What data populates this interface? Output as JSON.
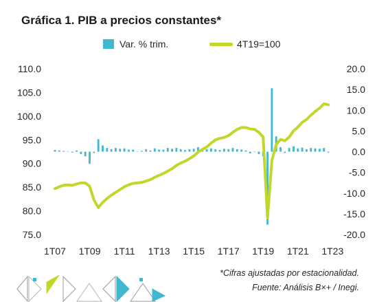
{
  "chart_data": {
    "type": "bar+line",
    "title": "Gráfica 1. PIB a precios constantes*",
    "legend": {
      "placement": "top-center",
      "items": [
        "Var. % trim.",
        "4T19=100"
      ]
    },
    "colors": {
      "bars": "#3fb8d0",
      "line": "#c3d62a"
    },
    "x_tick_labels": [
      "1T07",
      "1T09",
      "1T11",
      "1T13",
      "1T15",
      "1T17",
      "1T19",
      "1T21",
      "1T23"
    ],
    "left_axis": {
      "ylim": [
        75,
        110
      ],
      "ticks": [
        "110.0",
        "105.0",
        "100.0",
        "95.0",
        "90.0",
        "85.0",
        "80.0",
        "75.0"
      ]
    },
    "right_axis": {
      "ylim": [
        -20,
        20
      ],
      "ticks": [
        "20.0",
        "15.0",
        "10.0",
        "5.0",
        "0.0",
        "-5.0",
        "-10.0",
        "-15.0",
        "-20.0"
      ]
    },
    "grid": false,
    "series": [
      {
        "name": "Var. % trim.",
        "type": "bar",
        "axis": "right",
        "values": [
          0.4,
          0.3,
          0.2,
          0.1,
          -0.2,
          0.3,
          -0.6,
          -1.1,
          -2.9,
          -0.3,
          3.0,
          1.5,
          0.9,
          0.6,
          0.9,
          0.7,
          0.8,
          0.5,
          0.5,
          0.1,
          0.2,
          0.6,
          0.3,
          0.8,
          0.5,
          0.5,
          0.9,
          0.7,
          0.9,
          0.6,
          0.4,
          0.6,
          0.7,
          1.1,
          0.7,
          0.6,
          0.8,
          0.6,
          0.4,
          0.7,
          0.6,
          0.9,
          0.6,
          0.5,
          0.3,
          -0.4,
          -0.1,
          -0.6,
          -1.1,
          -17.6,
          15.3,
          3.7,
          1.1,
          -0.3,
          0.9,
          1.3,
          0.8,
          1.0,
          0.6,
          0.9,
          0.8,
          0.7,
          0.9,
          -0.2
        ]
      },
      {
        "name": "4T19=100",
        "type": "line",
        "axis": "left",
        "values": [
          84.7,
          85.1,
          85.4,
          85.5,
          85.4,
          85.7,
          85.9,
          85.9,
          85.2,
          82.3,
          80.7,
          81.8,
          82.6,
          83.3,
          83.9,
          84.5,
          85.1,
          85.5,
          85.8,
          85.9,
          86.0,
          86.3,
          86.6,
          87.1,
          87.5,
          87.9,
          88.4,
          88.9,
          89.6,
          90.1,
          90.5,
          91.0,
          91.6,
          92.4,
          93.0,
          93.5,
          94.3,
          95.0,
          95.3,
          95.5,
          95.9,
          96.6,
          97.2,
          97.6,
          97.6,
          97.3,
          97.2,
          96.6,
          95.6,
          78.5,
          90.6,
          94.0,
          95.1,
          94.8,
          95.6,
          96.9,
          97.7,
          98.7,
          99.3,
          100.2,
          101.0,
          101.7,
          102.6,
          102.4
        ]
      }
    ]
  },
  "notes": {
    "line1": "*Cifras ajustadas por estacionalidad.",
    "line2": "Fuente: Análisis B×+ /  Inegi."
  }
}
